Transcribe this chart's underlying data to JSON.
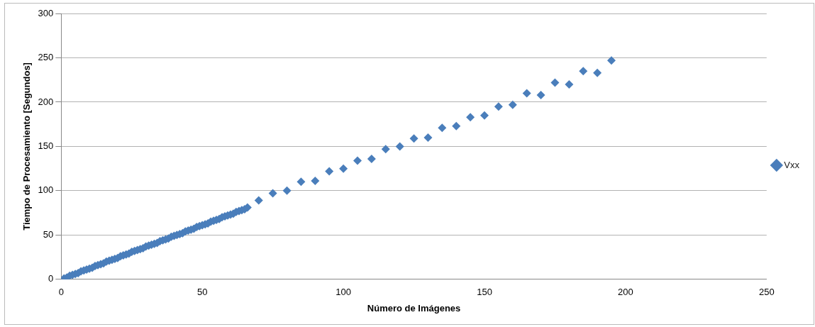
{
  "chart_data": {
    "type": "scatter",
    "xlabel": "Número de Imágenes",
    "ylabel": "Tiempo de Procesamiento [Segundos]",
    "xlim": [
      0,
      250
    ],
    "xticks": [
      0,
      50,
      100,
      150,
      200,
      250
    ],
    "ylim": [
      0,
      300
    ],
    "yticks": [
      0,
      50,
      100,
      150,
      200,
      250,
      300
    ],
    "grid": "y",
    "legend": "right",
    "marker": "diamond",
    "series": [
      {
        "name": "Vxx",
        "color": "#4a7ebb",
        "x": [
          1,
          2,
          3,
          4,
          5,
          6,
          7,
          8,
          9,
          10,
          11,
          12,
          13,
          14,
          15,
          16,
          17,
          18,
          19,
          20,
          21,
          22,
          23,
          24,
          25,
          26,
          27,
          28,
          29,
          30,
          31,
          32,
          33,
          34,
          35,
          36,
          37,
          38,
          39,
          40,
          41,
          42,
          43,
          44,
          45,
          46,
          47,
          48,
          49,
          50,
          51,
          52,
          53,
          54,
          55,
          56,
          57,
          58,
          59,
          60,
          61,
          62,
          63,
          64,
          65,
          66,
          70,
          75,
          80,
          85,
          90,
          95,
          100,
          105,
          110,
          115,
          120,
          125,
          130,
          135,
          140,
          145,
          150,
          155,
          160,
          165,
          170,
          175,
          180,
          185,
          190,
          195
        ],
        "values": [
          1,
          2,
          4,
          5,
          6,
          7,
          9,
          10,
          11,
          12,
          13,
          15,
          16,
          17,
          18,
          20,
          21,
          22,
          23,
          24,
          26,
          27,
          28,
          29,
          31,
          32,
          33,
          34,
          35,
          37,
          38,
          39,
          40,
          41,
          43,
          44,
          45,
          46,
          48,
          49,
          50,
          51,
          52,
          54,
          55,
          56,
          57,
          59,
          60,
          61,
          62,
          63,
          65,
          66,
          67,
          68,
          70,
          71,
          72,
          73,
          74,
          76,
          77,
          78,
          79,
          81,
          89,
          97,
          100,
          110,
          111,
          122,
          125,
          134,
          136,
          147,
          150,
          159,
          160,
          171,
          173,
          183,
          185,
          195,
          197,
          210,
          208,
          222,
          220,
          235,
          233,
          247
        ]
      }
    ]
  }
}
